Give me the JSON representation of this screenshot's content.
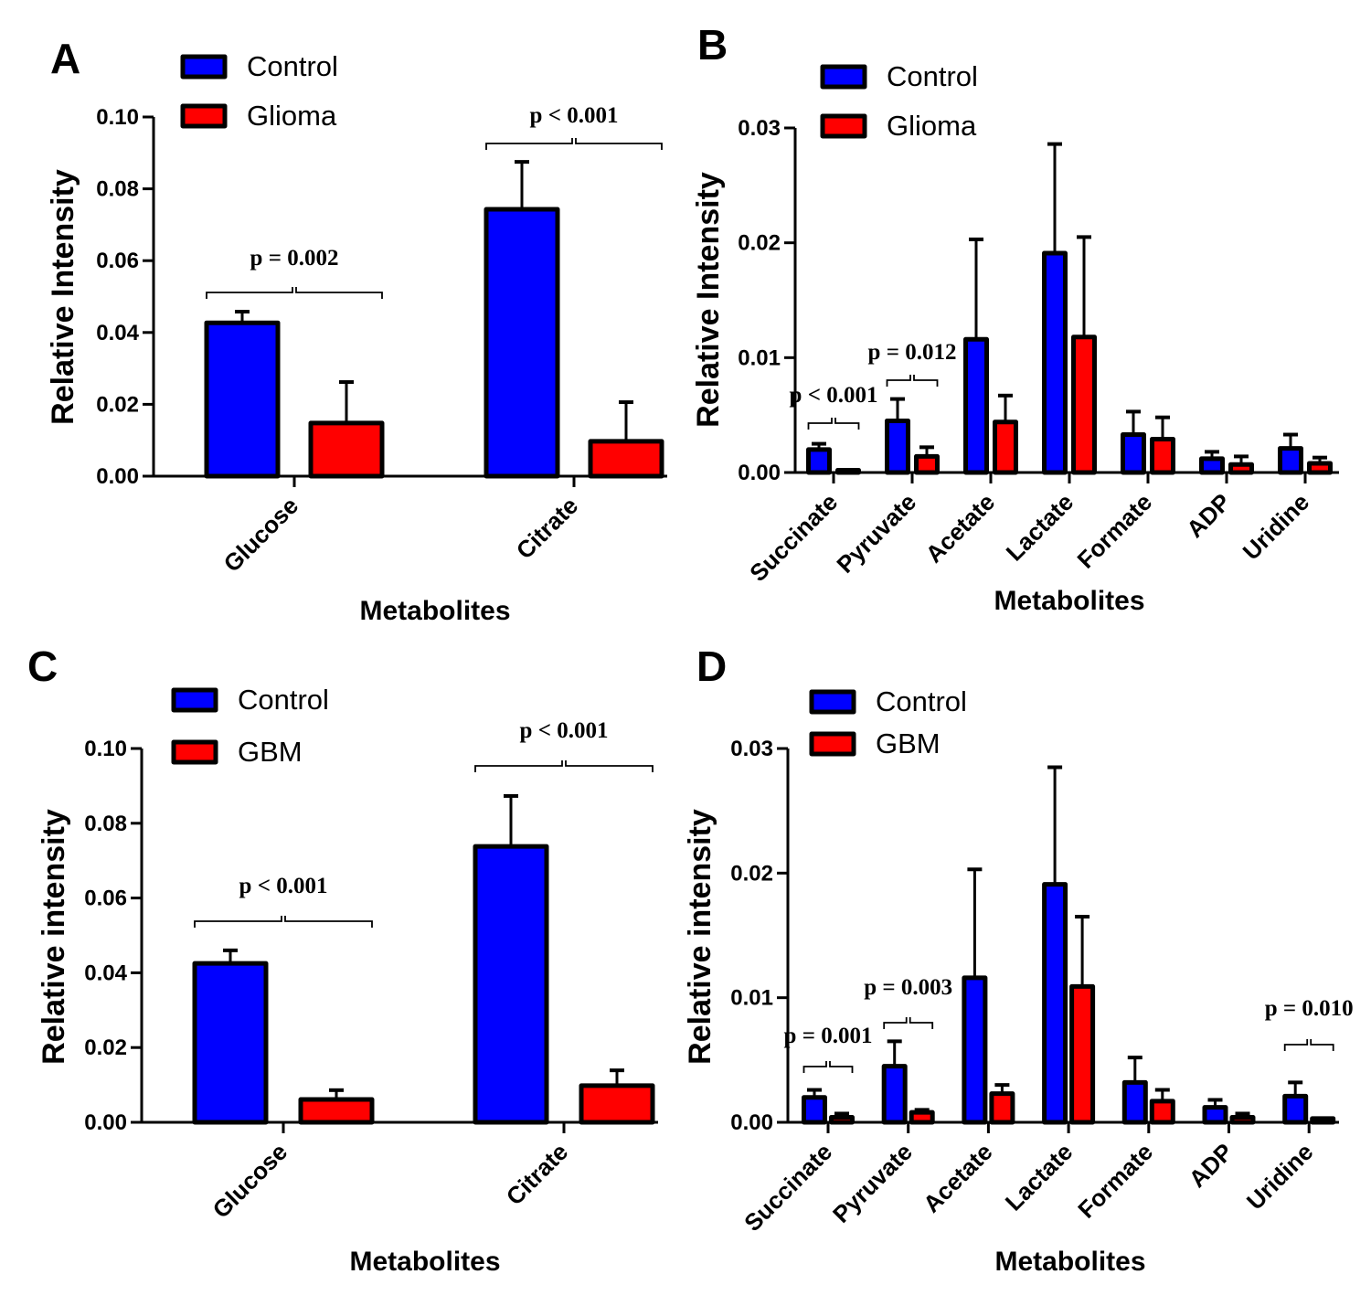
{
  "colors": {
    "control": "#0000ff",
    "disease": "#ff0000",
    "outline": "#000000"
  },
  "chart_data": [
    {
      "panel": "A",
      "type": "bar",
      "categories": [
        "Glucose",
        "Citrate"
      ],
      "series": [
        {
          "name": "Control",
          "values": [
            0.0427,
            0.0743
          ],
          "errors": [
            0.0458,
            0.0875
          ]
        },
        {
          "name": "Glioma",
          "values": [
            0.0148,
            0.0097
          ],
          "errors": [
            0.0262,
            0.0206
          ]
        }
      ],
      "xlabel": "Metabolites",
      "ylabel": "Relative Intensity",
      "ylim": [
        0,
        0.1
      ],
      "yticks": [
        "0.00",
        "0.02",
        "0.04",
        "0.06",
        "0.08",
        "0.10"
      ],
      "legend": "top-left",
      "grid": false,
      "annotations": [
        {
          "category": "Glucose",
          "text": "p = 0.002"
        },
        {
          "category": "Citrate",
          "text": "p < 0.001"
        }
      ]
    },
    {
      "panel": "B",
      "type": "bar",
      "categories": [
        "Succinate",
        "Pyruvate",
        "Acetate",
        "Lactate",
        "Formate",
        "ADP",
        "Uridine"
      ],
      "series": [
        {
          "name": "Control",
          "values": [
            0.002,
            0.0045,
            0.0116,
            0.0191,
            0.0033,
            0.0012,
            0.0021
          ],
          "errors": [
            0.0025,
            0.0064,
            0.0203,
            0.0286,
            0.0053,
            0.0018,
            0.0033
          ]
        },
        {
          "name": "Glioma",
          "values": [
            0.0002,
            0.0014,
            0.0044,
            0.0118,
            0.0029,
            0.0007,
            0.0008
          ],
          "errors": [
            0.0002,
            0.0022,
            0.0067,
            0.0205,
            0.0048,
            0.0014,
            0.0013
          ]
        }
      ],
      "xlabel": "Metabolites",
      "ylabel": "Relative Intensity",
      "ylim": [
        0,
        0.03
      ],
      "yticks": [
        "0.00",
        "0.01",
        "0.02",
        "0.03"
      ],
      "legend": "top-left",
      "grid": false,
      "annotations": [
        {
          "category": "Succinate",
          "text": "p < 0.001"
        },
        {
          "category": "Pyruvate",
          "text": "p = 0.012"
        }
      ]
    },
    {
      "panel": "C",
      "type": "bar",
      "categories": [
        "Glucose",
        "Citrate"
      ],
      "series": [
        {
          "name": "Control",
          "values": [
            0.0425,
            0.0738
          ],
          "errors": [
            0.046,
            0.0873
          ]
        },
        {
          "name": "GBM",
          "values": [
            0.0061,
            0.0098
          ],
          "errors": [
            0.0086,
            0.0139
          ]
        }
      ],
      "xlabel": "Metabolites",
      "ylabel": "Relative intensity",
      "ylim": [
        0,
        0.1
      ],
      "yticks": [
        "0.00",
        "0.02",
        "0.04",
        "0.06",
        "0.08",
        "0.10"
      ],
      "legend": "top-left",
      "grid": false,
      "annotations": [
        {
          "category": "Glucose",
          "text": "p < 0.001"
        },
        {
          "category": "Citrate",
          "text": "p < 0.001"
        }
      ]
    },
    {
      "panel": "D",
      "type": "bar",
      "categories": [
        "Succinate",
        "Pyruvate",
        "Acetate",
        "Lactate",
        "Formate",
        "ADP",
        "Uridine"
      ],
      "series": [
        {
          "name": "Control",
          "values": [
            0.002,
            0.0045,
            0.0116,
            0.0191,
            0.0032,
            0.0012,
            0.0021
          ],
          "errors": [
            0.0026,
            0.0065,
            0.0203,
            0.0285,
            0.0052,
            0.0018,
            0.0032
          ]
        },
        {
          "name": "GBM",
          "values": [
            0.0004,
            0.0008,
            0.0023,
            0.0109,
            0.0017,
            0.0004,
            0.0003
          ],
          "errors": [
            0.0007,
            0.001,
            0.003,
            0.0165,
            0.0026,
            0.0007,
            0.0003
          ]
        }
      ],
      "xlabel": "Metabolites",
      "ylabel": "Relative intensity",
      "ylim": [
        0,
        0.03
      ],
      "yticks": [
        "0.00",
        "0.01",
        "0.02",
        "0.03"
      ],
      "legend": "top-left",
      "grid": false,
      "annotations": [
        {
          "category": "Succinate",
          "text": "p = 0.001"
        },
        {
          "category": "Pyruvate",
          "text": "p = 0.003"
        },
        {
          "category": "Uridine",
          "text": "p = 0.010"
        }
      ]
    }
  ]
}
